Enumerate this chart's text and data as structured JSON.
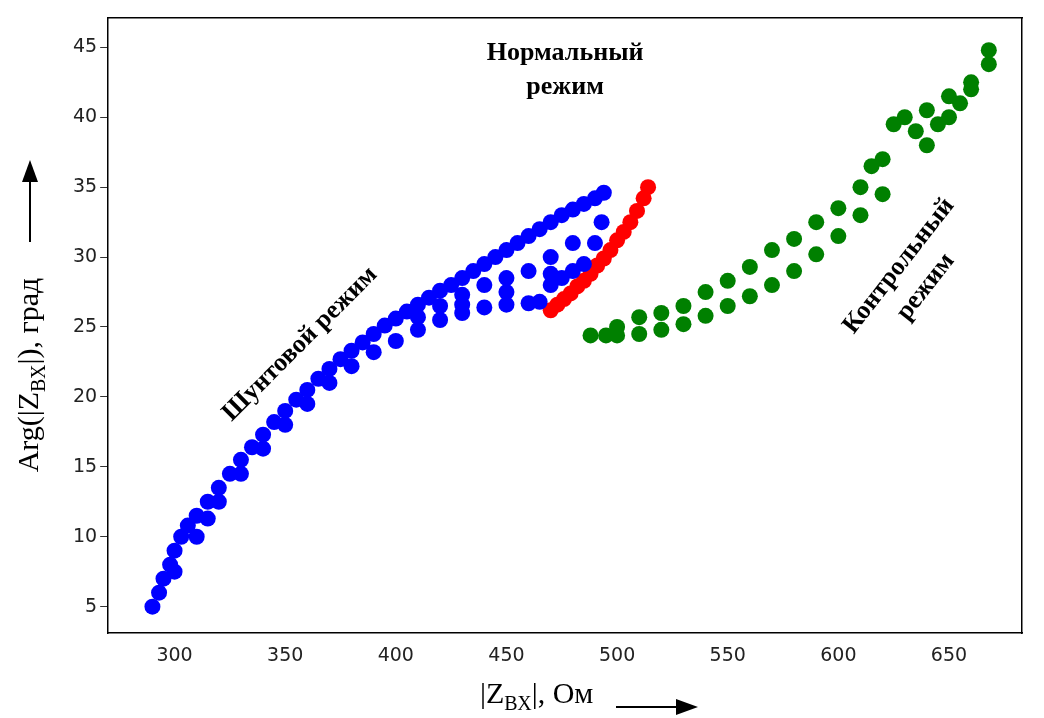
{
  "chart_data": {
    "type": "scatter",
    "xlabel": "|Z$_{ВХ}$|, Ом",
    "ylabel": "Arg(|Z$_{ВХ}$|), град",
    "xlim": [
      270,
      683
    ],
    "ylim": [
      3.1,
      47.1
    ],
    "xticks": [
      300,
      350,
      400,
      450,
      500,
      550,
      600,
      650
    ],
    "yticks": [
      5,
      10,
      15,
      20,
      25,
      30,
      35,
      40,
      45
    ],
    "grid": false,
    "legend": false,
    "marker": "circle",
    "series": [
      {
        "color": "#0000ff",
        "x": [
          290,
          293,
          295,
          298,
          300,
          303,
          306,
          310,
          315,
          320,
          325,
          330,
          335,
          340,
          345,
          350,
          355,
          360,
          365,
          370,
          375,
          380,
          385,
          390,
          395,
          400,
          405,
          410,
          415,
          420,
          425,
          430,
          435,
          440,
          445,
          450,
          455,
          460,
          465,
          470,
          475,
          480,
          485,
          490,
          494,
          300,
          310,
          315,
          320,
          330,
          340,
          350,
          360,
          370,
          380,
          390,
          400,
          410,
          420,
          430,
          440,
          450,
          460,
          465,
          470,
          475,
          480,
          485,
          490,
          493,
          410,
          420,
          430,
          440,
          450,
          460,
          470,
          480,
          430,
          450,
          470
        ],
        "values": [
          5,
          6,
          7,
          8,
          9,
          10,
          10.8,
          11.5,
          12.5,
          13.5,
          14.5,
          15.5,
          16.4,
          17.3,
          18.2,
          19,
          19.8,
          20.5,
          21.3,
          22,
          22.7,
          23.3,
          23.9,
          24.5,
          25.1,
          25.6,
          26.1,
          26.6,
          27.1,
          27.6,
          28,
          28.5,
          29,
          29.5,
          30,
          30.5,
          31,
          31.5,
          32,
          32.5,
          33,
          33.4,
          33.8,
          34.2,
          34.6,
          7.5,
          10,
          11.3,
          12.5,
          14.5,
          16.3,
          18,
          19.5,
          21,
          22.2,
          23.2,
          24,
          24.8,
          25.5,
          26,
          26.4,
          26.6,
          26.7,
          26.8,
          28,
          28.5,
          29,
          29.5,
          31,
          32.5,
          25.7,
          26.5,
          27.3,
          28,
          28.5,
          29,
          30,
          31,
          26.6,
          27.5,
          28.8
        ]
      },
      {
        "color": "#ff0000",
        "x": [
          470,
          473,
          476,
          479,
          482,
          485,
          488,
          491,
          494,
          497,
          500,
          503,
          506,
          509,
          512,
          514
        ],
        "values": [
          26.2,
          26.6,
          27,
          27.4,
          27.9,
          28.3,
          28.8,
          29.4,
          29.9,
          30.5,
          31.2,
          31.8,
          32.5,
          33.3,
          34.2,
          35
        ]
      },
      {
        "color": "#008000",
        "x": [
          488,
          495,
          500,
          510,
          520,
          530,
          540,
          550,
          560,
          570,
          580,
          590,
          600,
          610,
          620,
          640,
          650,
          660,
          668,
          500,
          510,
          520,
          530,
          540,
          550,
          560,
          570,
          580,
          590,
          600,
          610,
          620,
          625,
          630,
          640,
          650,
          660,
          668,
          615,
          635,
          645,
          655
        ],
        "values": [
          24.4,
          24.4,
          24.4,
          24.5,
          24.8,
          25.2,
          25.8,
          26.5,
          27.2,
          28,
          29,
          30.2,
          31.5,
          33,
          34.5,
          38,
          40,
          42,
          43.8,
          25,
          25.7,
          26,
          26.5,
          27.5,
          28.3,
          29.3,
          30.5,
          31.3,
          32.5,
          33.5,
          35,
          37,
          39.5,
          40,
          40.5,
          41.5,
          42.5,
          44.8,
          36.5,
          39,
          39.5,
          41
        ]
      }
    ],
    "annotations": [
      "Нормальный\nрежим",
      "Шунтовой режим",
      "Контрольный\nрежим"
    ]
  }
}
